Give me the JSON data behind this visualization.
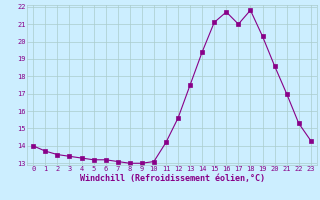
{
  "hours": [
    0,
    1,
    2,
    3,
    4,
    5,
    6,
    7,
    8,
    9,
    10,
    11,
    12,
    13,
    14,
    15,
    16,
    17,
    18,
    19,
    20,
    21,
    22,
    23
  ],
  "values": [
    14.0,
    13.7,
    13.5,
    13.4,
    13.3,
    13.2,
    13.2,
    13.1,
    13.0,
    13.0,
    13.1,
    14.2,
    15.6,
    17.5,
    19.4,
    21.1,
    21.7,
    21.0,
    21.8,
    20.3,
    18.6,
    17.0,
    15.3,
    14.3
  ],
  "line_color": "#880088",
  "marker": "s",
  "marker_size": 2.2,
  "bg_color": "#cceeff",
  "grid_color": "#aacccc",
  "xlabel": "Windchill (Refroidissement éolien,°C)",
  "xlabel_color": "#880088",
  "tick_color": "#880088",
  "ylim": [
    13,
    22
  ],
  "yticks": [
    13,
    14,
    15,
    16,
    17,
    18,
    19,
    20,
    21,
    22
  ],
  "xticks": [
    0,
    1,
    2,
    3,
    4,
    5,
    6,
    7,
    8,
    9,
    10,
    11,
    12,
    13,
    14,
    15,
    16,
    17,
    18,
    19,
    20,
    21,
    22,
    23
  ],
  "font_family": "monospace",
  "font_size_ticks": 5.0,
  "font_size_label": 6.0
}
